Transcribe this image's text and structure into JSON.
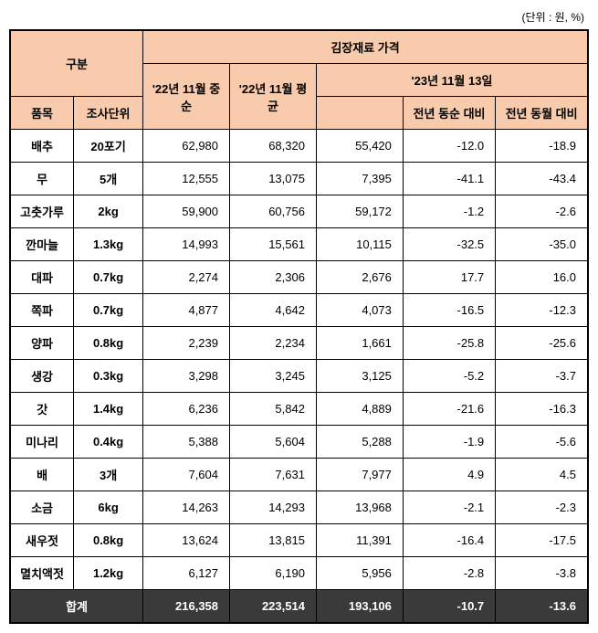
{
  "unit_label": "(단위 : 원, %)",
  "headers": {
    "category": "구분",
    "price_header": "김장재료 가격",
    "item": "품목",
    "survey_unit": "조사단위",
    "nov22_mid": "'22년 11월 중순",
    "nov22_avg": "'22년 11월 평균",
    "nov23_date": "'23년 11월 13일",
    "yoy_mid": "전년 동순 대비",
    "yoy_month": "전년 동월 대비"
  },
  "rows": [
    {
      "item": "배추",
      "unit": "20포기",
      "mid22": "62,980",
      "avg22": "68,320",
      "nov23": "55,420",
      "yoy_mid": "-12.0",
      "yoy_month": "-18.9"
    },
    {
      "item": "무",
      "unit": "5개",
      "mid22": "12,555",
      "avg22": "13,075",
      "nov23": "7,395",
      "yoy_mid": "-41.1",
      "yoy_month": "-43.4"
    },
    {
      "item": "고춧가루",
      "unit": "2kg",
      "mid22": "59,900",
      "avg22": "60,756",
      "nov23": "59,172",
      "yoy_mid": "-1.2",
      "yoy_month": "-2.6"
    },
    {
      "item": "깐마늘",
      "unit": "1.3kg",
      "mid22": "14,993",
      "avg22": "15,561",
      "nov23": "10,115",
      "yoy_mid": "-32.5",
      "yoy_month": "-35.0"
    },
    {
      "item": "대파",
      "unit": "0.7kg",
      "mid22": "2,274",
      "avg22": "2,306",
      "nov23": "2,676",
      "yoy_mid": "17.7",
      "yoy_month": "16.0"
    },
    {
      "item": "쪽파",
      "unit": "0.7kg",
      "mid22": "4,877",
      "avg22": "4,642",
      "nov23": "4,073",
      "yoy_mid": "-16.5",
      "yoy_month": "-12.3"
    },
    {
      "item": "양파",
      "unit": "0.8kg",
      "mid22": "2,239",
      "avg22": "2,234",
      "nov23": "1,661",
      "yoy_mid": "-25.8",
      "yoy_month": "-25.6"
    },
    {
      "item": "생강",
      "unit": "0.3kg",
      "mid22": "3,298",
      "avg22": "3,245",
      "nov23": "3,125",
      "yoy_mid": "-5.2",
      "yoy_month": "-3.7"
    },
    {
      "item": "갓",
      "unit": "1.4kg",
      "mid22": "6,236",
      "avg22": "5,842",
      "nov23": "4,889",
      "yoy_mid": "-21.6",
      "yoy_month": "-16.3"
    },
    {
      "item": "미나리",
      "unit": "0.4kg",
      "mid22": "5,388",
      "avg22": "5,604",
      "nov23": "5,288",
      "yoy_mid": "-1.9",
      "yoy_month": "-5.6"
    },
    {
      "item": "배",
      "unit": "3개",
      "mid22": "7,604",
      "avg22": "7,631",
      "nov23": "7,977",
      "yoy_mid": "4.9",
      "yoy_month": "4.5"
    },
    {
      "item": "소금",
      "unit": "6kg",
      "mid22": "14,263",
      "avg22": "14,293",
      "nov23": "13,968",
      "yoy_mid": "-2.1",
      "yoy_month": "-2.3"
    },
    {
      "item": "새우젓",
      "unit": "0.8kg",
      "mid22": "13,624",
      "avg22": "13,815",
      "nov23": "11,391",
      "yoy_mid": "-16.4",
      "yoy_month": "-17.5"
    },
    {
      "item": "멸치액젓",
      "unit": "1.2kg",
      "mid22": "6,127",
      "avg22": "6,190",
      "nov23": "5,956",
      "yoy_mid": "-2.8",
      "yoy_month": "-3.8"
    }
  ],
  "total": {
    "label": "합계",
    "mid22": "216,358",
    "avg22": "223,514",
    "nov23": "193,106",
    "yoy_mid": "-10.7",
    "yoy_month": "-13.6"
  },
  "colors": {
    "header_bg": "#f8cbad",
    "total_bg": "#3a3a3a",
    "total_text": "#ffffff",
    "border": "#000000",
    "background": "#ffffff"
  }
}
